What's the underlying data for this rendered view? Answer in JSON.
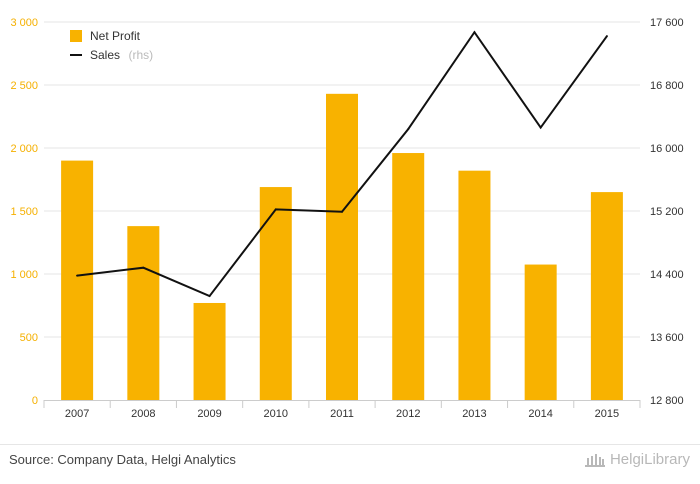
{
  "chart_data": {
    "type": "bar+line",
    "categories": [
      "2007",
      "2008",
      "2009",
      "2010",
      "2011",
      "2012",
      "2013",
      "2014",
      "2015"
    ],
    "series": [
      {
        "name": "Net Profit",
        "type": "bar",
        "axis": "left",
        "color": "#f8b200",
        "values": [
          1900,
          1380,
          770,
          1690,
          2430,
          1960,
          1820,
          1075,
          1650
        ]
      },
      {
        "name": "Sales",
        "type": "line",
        "axis": "right",
        "color": "#111111",
        "values": [
          14380,
          14480,
          14120,
          15220,
          15190,
          16240,
          17470,
          16260,
          17420
        ]
      }
    ],
    "title": "",
    "xlabel": "",
    "ylabel": "",
    "y_left": {
      "range": [
        0,
        3000
      ],
      "ticks": [
        0,
        500,
        1000,
        1500,
        2000,
        2500,
        3000
      ],
      "tick_labels": [
        "0",
        "500",
        "1 000",
        "1 500",
        "2 000",
        "2 500",
        "3 000"
      ]
    },
    "y_right": {
      "range": [
        12800,
        17600
      ],
      "ticks": [
        12800,
        13600,
        14400,
        15200,
        16000,
        16800,
        17600
      ],
      "tick_labels": [
        "12 800",
        "13 600",
        "14 400",
        "15 200",
        "16 000",
        "16 800",
        "17 600"
      ]
    },
    "grid": true,
    "legend": {
      "position": "top-left",
      "items": [
        {
          "label": "Net Profit",
          "marker": "square",
          "color": "#f8b200"
        },
        {
          "label": "Sales",
          "note": "(rhs)",
          "marker": "line",
          "color": "#111111"
        }
      ]
    }
  },
  "footer": {
    "source": "Source: Company Data, Helgi Analytics",
    "brand": "HelgiLibrary"
  }
}
